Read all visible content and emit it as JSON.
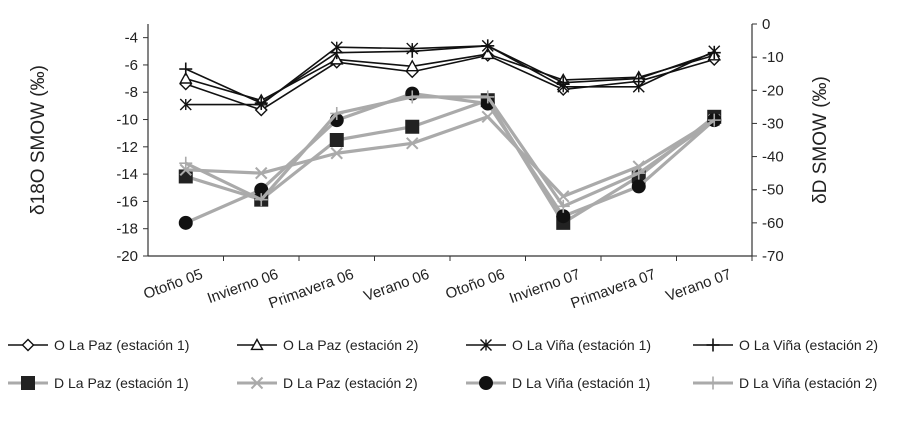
{
  "chart_data": {
    "type": "line",
    "categories": [
      "Otoño 05",
      "Invierno 06",
      "Primavera 06",
      "Verano 06",
      "Otoño 06",
      "Invierno 07",
      "Primavera 07",
      "Verano 07"
    ],
    "ylabel_left": "δ18O SMOW (‰)",
    "ylabel_right": "δD SMOW (‰)",
    "ylim_left": [
      -20,
      -3
    ],
    "ylim_right": [
      -70,
      0
    ],
    "yticks_left": [
      "-4",
      "-6",
      "-8",
      "-10",
      "-12",
      "-14",
      "-16",
      "-18",
      "-20"
    ],
    "yticks_right": [
      "0",
      "-10",
      "-20",
      "-30",
      "-40",
      "-50",
      "-60",
      "-70"
    ],
    "grid": false,
    "legend_position": "bottom",
    "series": [
      {
        "name": "O La Paz (estación 1)",
        "axis": "left",
        "color": "#111111",
        "marker": "diamond",
        "values": [
          -7.4,
          -9.3,
          -5.8,
          -6.5,
          -5.3,
          -7.8,
          -7.2,
          -5.6
        ]
      },
      {
        "name": "O La Paz (estación 2)",
        "axis": "left",
        "color": "#111111",
        "marker": "triangle",
        "values": [
          -7.0,
          -8.6,
          -5.6,
          -6.1,
          -5.2,
          -7.1,
          -6.9,
          -5.3
        ]
      },
      {
        "name": "O La Viña (estación 1)",
        "axis": "left",
        "color": "#111111",
        "marker": "asterisk",
        "values": [
          -8.9,
          -8.9,
          -4.7,
          -4.8,
          -4.6,
          -7.6,
          -7.6,
          -5.0
        ]
      },
      {
        "name": "O La Viña (estación 2)",
        "axis": "left",
        "color": "#111111",
        "marker": "plus",
        "values": [
          -6.3,
          -8.8,
          -5.1,
          -5.0,
          -4.6,
          -7.3,
          -7.0,
          -5.1
        ]
      },
      {
        "name": "D La Paz (estación 1)",
        "axis": "right",
        "color": "#aaaaaa",
        "marker": "square",
        "markerColor": "#222222",
        "values": [
          -46,
          -53,
          -35,
          -31,
          -23,
          -60,
          -46,
          -28
        ]
      },
      {
        "name": "D La Paz (estación 2)",
        "axis": "right",
        "color": "#aaaaaa",
        "marker": "x",
        "markerColor": "#aaaaaa",
        "values": [
          -44,
          -45,
          -39,
          -36,
          -28,
          -52,
          -43,
          -29
        ]
      },
      {
        "name": "D La Viña (estación 1)",
        "axis": "right",
        "color": "#aaaaaa",
        "marker": "circle",
        "markerColor": "#111111",
        "values": [
          -60,
          -50,
          -29,
          -21,
          -24,
          -58,
          -49,
          -29
        ]
      },
      {
        "name": "D La Viña (estación 2)",
        "axis": "right",
        "color": "#aaaaaa",
        "marker": "plus",
        "markerColor": "#aaaaaa",
        "values": [
          -42,
          -53,
          -27,
          -22,
          -22,
          -55,
          -45,
          -29
        ]
      }
    ]
  }
}
